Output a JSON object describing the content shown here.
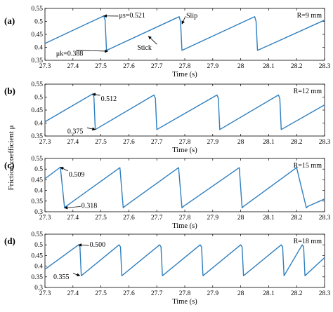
{
  "ylabel": "Friction coefficient μ",
  "chart_data": [
    {
      "type": "line",
      "panel_label": "(a)",
      "xlabel": "Time (s)",
      "xlim": [
        27.3,
        28.3
      ],
      "ylim": [
        0.35,
        0.55
      ],
      "xticks": [
        "27.3",
        "27.4",
        "27.5",
        "27.6",
        "27.7",
        "27.8",
        "27.9",
        "28",
        "28.1",
        "28.2",
        "28.3"
      ],
      "yticks": [
        "0.35",
        "0.4",
        "0.45",
        "0.5",
        "0.55"
      ],
      "radius_label": "R=9 mm",
      "series": [
        {
          "x": [
            27.3,
            27.51,
            27.515,
            27.52,
            27.78,
            27.785,
            27.79,
            28.05,
            28.055,
            28.06,
            28.3
          ],
          "y": [
            0.415,
            0.521,
            0.505,
            0.388,
            0.518,
            0.5,
            0.388,
            0.518,
            0.5,
            0.388,
            0.505
          ]
        }
      ],
      "annotations": [
        {
          "text": "μs=0.521",
          "x": 27.51,
          "y": 0.521,
          "tx": 27.565,
          "ty": 0.515
        },
        {
          "text": "μk=0.388",
          "x": 27.525,
          "y": 0.385,
          "tx": 27.34,
          "ty": 0.367
        },
        {
          "text": "Stick",
          "x": 27.67,
          "y": 0.443,
          "tx": 27.63,
          "ty": 0.39
        },
        {
          "text": "Slip",
          "x": 27.79,
          "y": 0.49,
          "tx": 27.805,
          "ty": 0.514
        }
      ]
    },
    {
      "type": "line",
      "panel_label": "(b)",
      "xlabel": "Time (s)",
      "xlim": [
        27.3,
        28.3
      ],
      "ylim": [
        0.35,
        0.55
      ],
      "xticks": [
        "27.3",
        "27.4",
        "27.5",
        "27.6",
        "27.7",
        "27.8",
        "27.9",
        "28",
        "28.1",
        "28.2",
        "28.3"
      ],
      "yticks": [
        "0.35",
        "0.4",
        "0.45",
        "0.5",
        "0.55"
      ],
      "radius_label": "R=12 mm",
      "series": [
        {
          "x": [
            27.3,
            27.47,
            27.475,
            27.48,
            27.69,
            27.695,
            27.7,
            27.915,
            27.92,
            27.925,
            28.135,
            28.14,
            28.145,
            28.3
          ],
          "y": [
            0.405,
            0.512,
            0.5,
            0.375,
            0.508,
            0.495,
            0.375,
            0.508,
            0.495,
            0.375,
            0.508,
            0.495,
            0.375,
            0.47
          ]
        }
      ],
      "annotations": [
        {
          "text": "0.512",
          "x": 27.47,
          "y": 0.512,
          "tx": 27.5,
          "ty": 0.485
        },
        {
          "text": "0.375",
          "x": 27.48,
          "y": 0.375,
          "tx": 27.38,
          "ty": 0.36
        }
      ]
    },
    {
      "type": "line",
      "panel_label": "(c)",
      "xlabel": "Time (s)",
      "xlim": [
        27.3,
        28.3
      ],
      "ylim": [
        0.3,
        0.55
      ],
      "xticks": [
        "27.3",
        "27.4",
        "27.5",
        "27.6",
        "27.7",
        "27.8",
        "27.9",
        "28",
        "28.1",
        "28.2",
        "28.3"
      ],
      "yticks": [
        "0.3",
        "0.35",
        "0.4",
        "0.45",
        "0.5",
        "0.55"
      ],
      "radius_label": "R=15 mm",
      "series": [
        {
          "x": [
            27.3,
            27.355,
            27.37,
            27.375,
            27.568,
            27.58,
            27.585,
            27.778,
            27.79,
            27.795,
            27.995,
            28.005,
            28.01,
            28.2,
            28.235,
            28.24,
            28.3
          ],
          "y": [
            0.455,
            0.509,
            0.318,
            0.325,
            0.507,
            0.318,
            0.325,
            0.507,
            0.318,
            0.325,
            0.507,
            0.318,
            0.325,
            0.507,
            0.318,
            0.325,
            0.36
          ]
        }
      ],
      "annotations": [
        {
          "text": "0.509",
          "x": 27.355,
          "y": 0.509,
          "tx": 27.385,
          "ty": 0.465
        },
        {
          "text": "0.318",
          "x": 27.37,
          "y": 0.318,
          "tx": 27.43,
          "ty": 0.318
        }
      ]
    },
    {
      "type": "line",
      "panel_label": "(d)",
      "xlabel": "Time (s)",
      "xlim": [
        27.3,
        28.3
      ],
      "ylim": [
        0.3,
        0.55
      ],
      "xticks": [
        "27.3",
        "27.4",
        "27.5",
        "27.6",
        "27.7",
        "27.8",
        "27.9",
        "28",
        "28.1",
        "28.2",
        "28.3"
      ],
      "yticks": [
        "0.3",
        "0.35",
        "0.4",
        "0.45",
        "0.5",
        "0.55"
      ],
      "radius_label": "R=18 mm",
      "series": [
        {
          "x": [
            27.3,
            27.42,
            27.425,
            27.43,
            27.565,
            27.57,
            27.575,
            27.71,
            27.715,
            27.72,
            27.855,
            27.86,
            27.865,
            28.0,
            28.005,
            28.01,
            28.145,
            28.15,
            28.155,
            28.22,
            28.225,
            28.23,
            28.3
          ],
          "y": [
            0.385,
            0.5,
            0.49,
            0.355,
            0.5,
            0.49,
            0.355,
            0.5,
            0.49,
            0.355,
            0.5,
            0.49,
            0.355,
            0.5,
            0.49,
            0.355,
            0.5,
            0.49,
            0.355,
            0.5,
            0.49,
            0.355,
            0.44
          ]
        }
      ],
      "annotations": [
        {
          "text": "0.500",
          "x": 27.42,
          "y": 0.5,
          "tx": 27.46,
          "ty": 0.49
        },
        {
          "text": "0.355",
          "x": 27.425,
          "y": 0.355,
          "tx": 27.33,
          "ty": 0.34
        }
      ]
    }
  ]
}
